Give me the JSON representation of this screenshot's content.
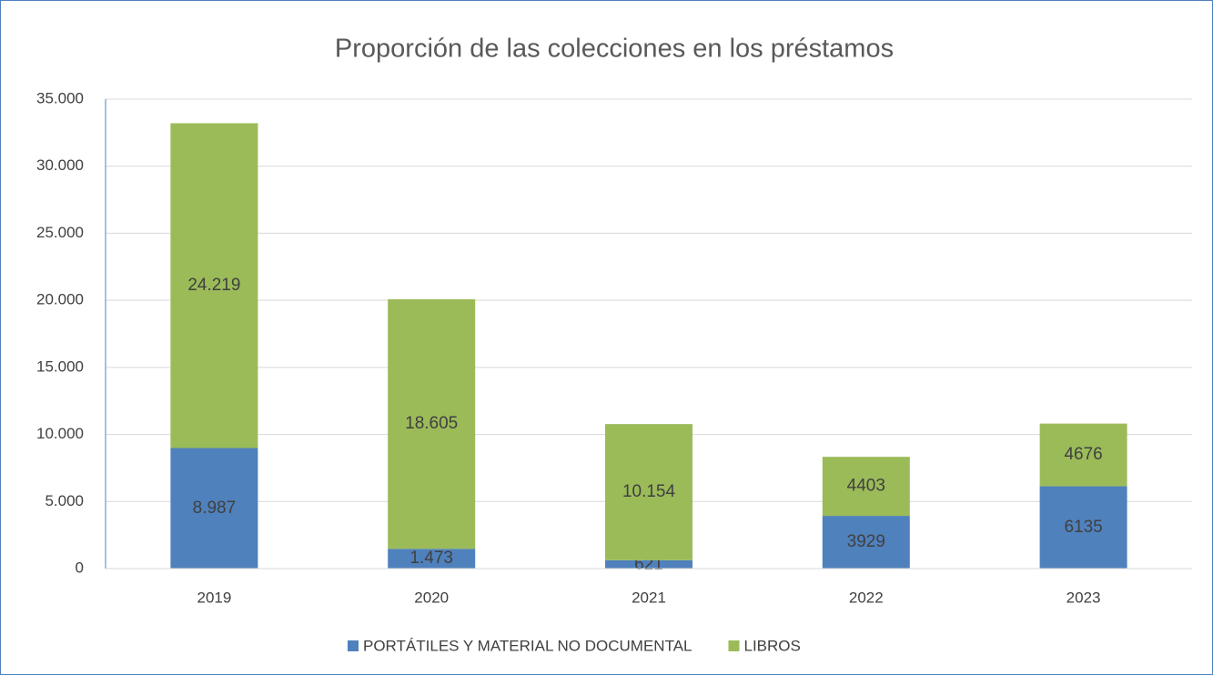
{
  "chart_data": {
    "type": "stacked_bar",
    "title": "Proporción de las colecciones en los préstamos",
    "categories": [
      "2019",
      "2020",
      "2021",
      "2022",
      "2023"
    ],
    "series": [
      {
        "name": "PORTÁTILES Y MATERIAL NO DOCUMENTAL",
        "color": "#4f81bd",
        "values": [
          8987,
          1473,
          621,
          3929,
          6135
        ],
        "value_labels": [
          "8.987",
          "1.473",
          "621",
          "3929",
          "6135"
        ]
      },
      {
        "name": "LIBROS",
        "color": "#9bbb59",
        "values": [
          24219,
          18605,
          10154,
          4403,
          4676
        ],
        "value_labels": [
          "24.219",
          "18.605",
          "10.154",
          "4403",
          "4676"
        ]
      }
    ],
    "ylim": [
      0,
      35000
    ],
    "yticks": [
      0,
      {
        "value": 5000,
        "label": "5.000"
      },
      {
        "value": 10000,
        "label": "10.000"
      },
      {
        "value": 15000,
        "label": "15.000"
      },
      {
        "value": 20000,
        "label": "20.000"
      },
      {
        "value": 25000,
        "label": "25.000"
      },
      {
        "value": 30000,
        "label": "30.000"
      },
      {
        "value": 35000,
        "label": "35.000"
      }
    ],
    "grid": true,
    "legend": "bottom"
  }
}
